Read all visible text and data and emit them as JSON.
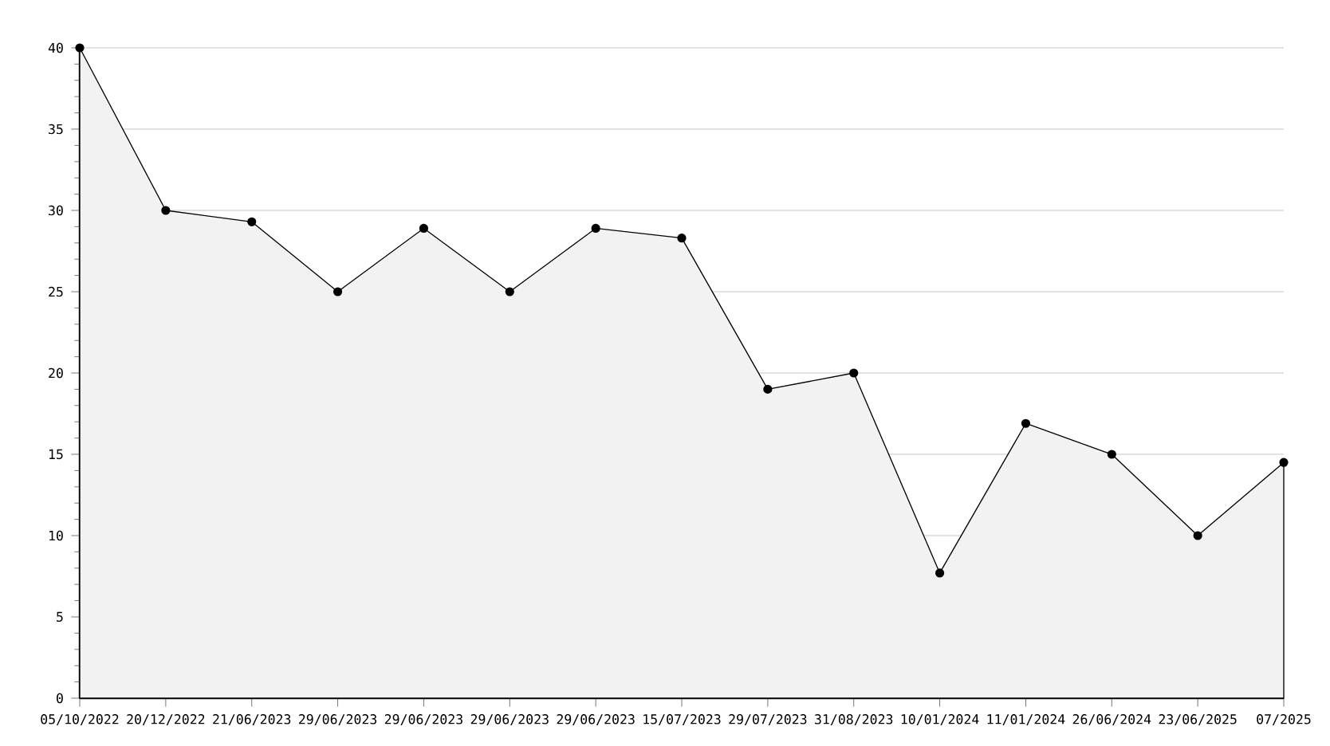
{
  "chart_data": {
    "type": "area",
    "categories": [
      "05/10/2022",
      "20/12/2022",
      "21/06/2023",
      "29/06/2023",
      "29/06/2023",
      "29/06/2023",
      "29/06/2023",
      "15/07/2023",
      "29/07/2023",
      "31/08/2023",
      "10/01/2024",
      "11/01/2024",
      "26/06/2024",
      "23/06/2025",
      "07/2025"
    ],
    "values": [
      40,
      30,
      29.3,
      25,
      28.9,
      25,
      28.9,
      28.3,
      19,
      20,
      7.7,
      16.9,
      15,
      10,
      14.5
    ],
    "color": "#000000",
    "ylim": [
      0,
      40
    ],
    "yticks": [
      0,
      5,
      10,
      15,
      20,
      25,
      30,
      35,
      40
    ],
    "grid": "y",
    "marker": "circle",
    "line_style": "solid"
  }
}
